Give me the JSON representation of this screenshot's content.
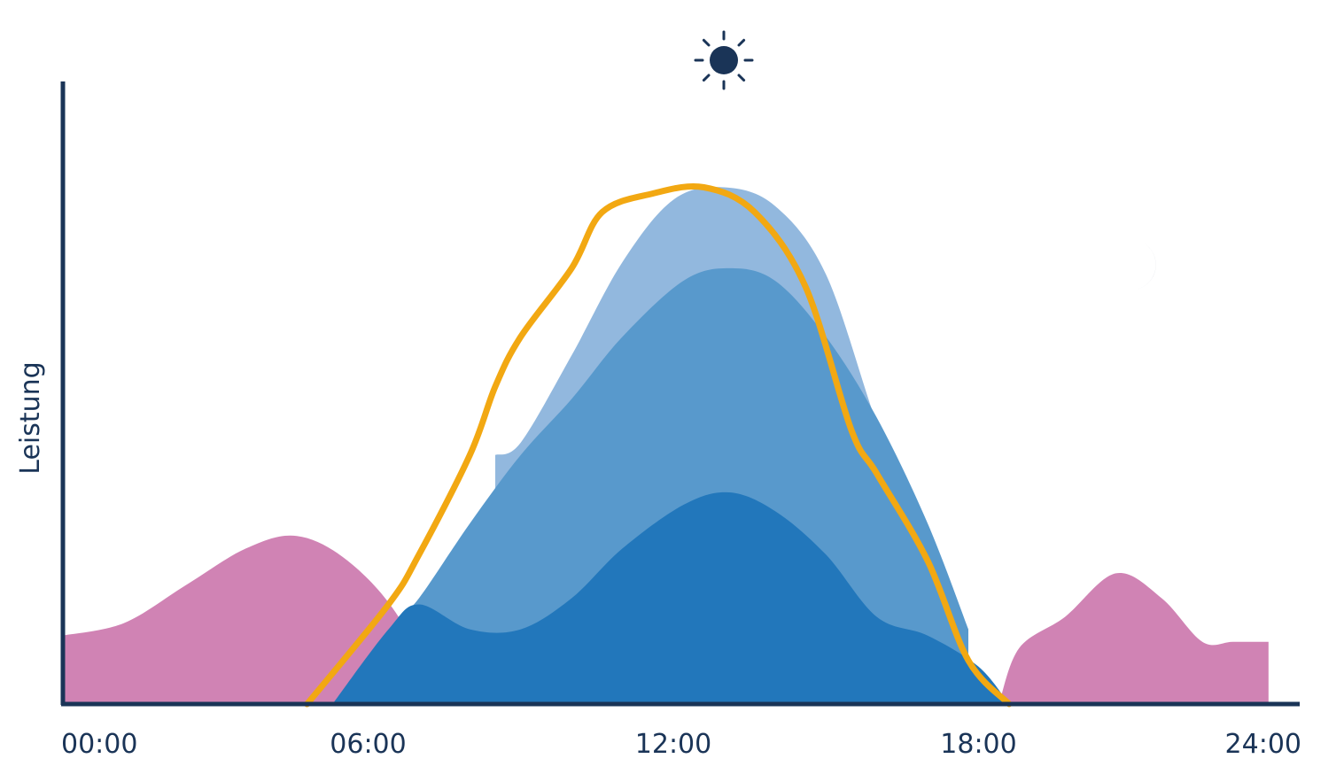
{
  "colors": {
    "axis": "#1a3457",
    "icons": "#1a3457",
    "consumption": "#d083b4",
    "layer_dark": "#2277bb",
    "layer_mid": "#5899cc",
    "layer_light": "#92b8de",
    "outline": "#f2a812"
  },
  "icons": {
    "sun": "sun-icon",
    "moon_left": "moon-icon",
    "moon_right": "moon-icon"
  },
  "chart_data": {
    "type": "area",
    "ylabel": "Leistung",
    "xlabel": "",
    "xlim": [
      0,
      24
    ],
    "ylim": [
      0,
      100
    ],
    "x_ticks": [
      "00:00",
      "06:00",
      "12:00",
      "18:00",
      "24:00"
    ],
    "grid": false,
    "series": [
      {
        "key": "consumption",
        "x": [
          0,
          1.2,
          2.4,
          3.6,
          4.6,
          5.6,
          6.6,
          7.4
        ],
        "y": [
          11,
          13,
          19,
          25,
          27,
          23,
          14,
          0
        ]
      },
      {
        "key": "consumption_evening",
        "x": [
          18.4,
          18.8,
          19.7,
          20.7,
          21.6,
          22.4,
          23.0,
          23.7
        ],
        "y": [
          0,
          9,
          14,
          21,
          17,
          10,
          10,
          10
        ]
      },
      {
        "key": "layer_dark",
        "x": [
          5.3,
          6.4,
          7.0,
          8.0,
          9.0,
          10.0,
          11.0,
          12.2,
          13.1,
          14.0,
          15.0,
          16.0,
          17.0,
          18.0,
          18.6
        ],
        "y": [
          0,
          12,
          16,
          12,
          12,
          17,
          25,
          32,
          34,
          31,
          24,
          14,
          11,
          6,
          0
        ]
      },
      {
        "key": "layer_mid",
        "x": [
          6.6,
          7.0,
          8.0,
          9.0,
          10.0,
          11.0,
          12.2,
          13.1,
          14.0,
          15.0,
          16.0,
          17.0,
          17.8
        ],
        "y": [
          14,
          17,
          29,
          40,
          49,
          59,
          68,
          70,
          68,
          59,
          46,
          29,
          12
        ]
      },
      {
        "key": "layer_light",
        "x": [
          8.5,
          9.0,
          10.0,
          11.0,
          12.0,
          13.0,
          14.0,
          15.0,
          16.0,
          17.0
        ],
        "y": [
          40,
          42,
          56,
          71,
          81,
          83,
          80,
          69,
          45,
          23
        ]
      },
      {
        "key": "outline",
        "x": [
          4.8,
          6.4,
          7.0,
          8.0,
          8.5,
          9.0,
          10.0,
          10.6,
          11.6,
          12.6,
          13.6,
          14.6,
          15.5,
          16.0,
          17.0,
          17.8,
          18.6
        ],
        "y": [
          0,
          16,
          24,
          40,
          51,
          59,
          70,
          79,
          82,
          83,
          79,
          67,
          44,
          37,
          23,
          7,
          0
        ]
      }
    ]
  }
}
